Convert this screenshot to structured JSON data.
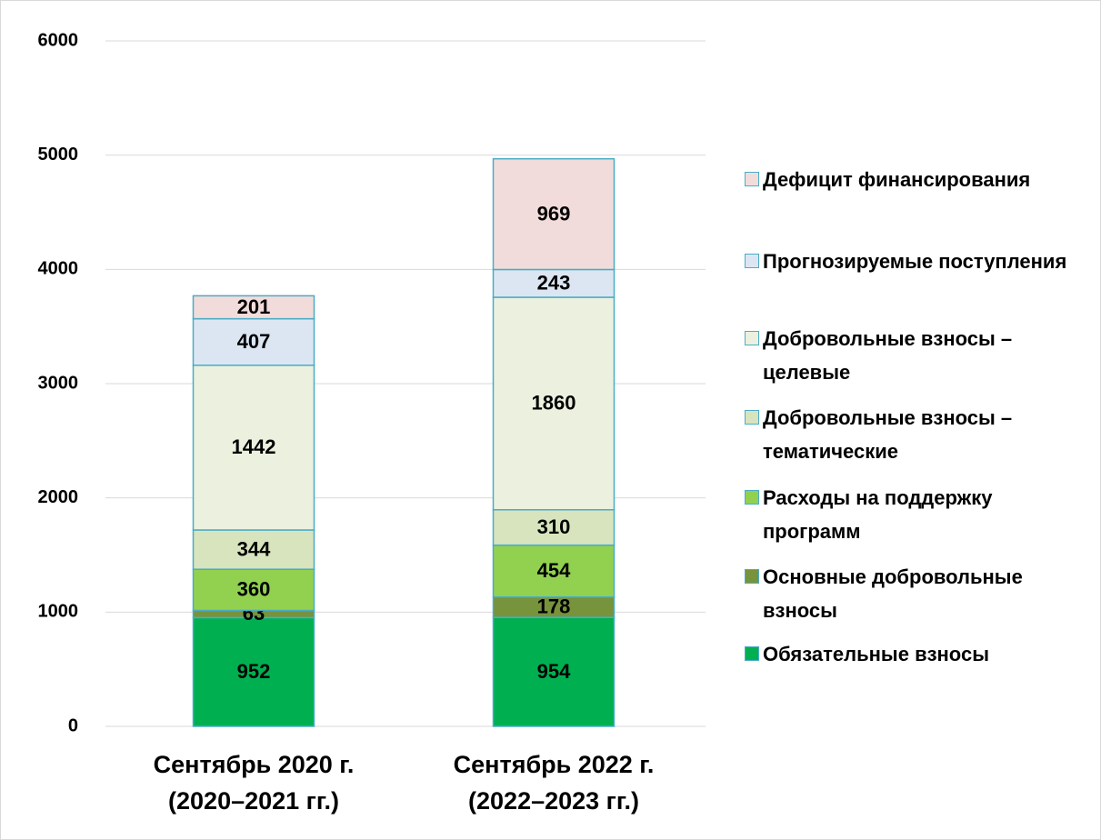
{
  "chart_data": {
    "type": "stacked_bar",
    "categories": [
      [
        "Сентябрь 2020 г.",
        "(2020–2021 гг.)"
      ],
      [
        "Сентябрь 2022 г.",
        "(2022–2023 гг.)"
      ]
    ],
    "series": [
      {
        "name": "Обязательные взносы",
        "color": "#00b050",
        "values": [
          952,
          954
        ]
      },
      {
        "name": "Основные добровольные взносы",
        "color": "#77933c",
        "values": [
          63,
          178
        ]
      },
      {
        "name": "Расходы на поддержку программ",
        "color": "#92d050",
        "values": [
          360,
          454
        ]
      },
      {
        "name": "Добровольные взносы – тематические",
        "color": "#d7e4bd",
        "values": [
          344,
          310
        ]
      },
      {
        "name": "Добровольные взносы – целевые",
        "color": "#ebf1de",
        "values": [
          1442,
          1860
        ]
      },
      {
        "name": "Прогнозируемые поступления",
        "color": "#dce6f2",
        "values": [
          407,
          243
        ]
      },
      {
        "name": "Дефицит финансирования",
        "color": "#f2dcdb",
        "values": [
          201,
          969
        ]
      }
    ],
    "ylim": [
      0,
      6000
    ],
    "yticks": [
      0,
      1000,
      2000,
      3000,
      4000,
      5000,
      6000
    ],
    "grid": true,
    "legend": "right"
  }
}
